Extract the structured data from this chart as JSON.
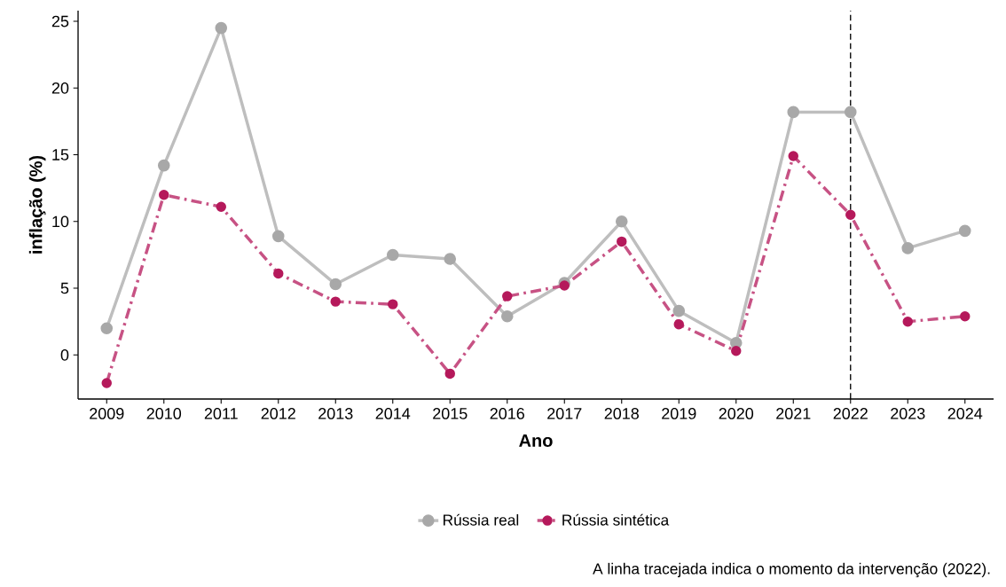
{
  "chart_data": {
    "type": "line",
    "xlabel": "Ano",
    "ylabel": "inflação (%)",
    "x": [
      2009,
      2010,
      2011,
      2012,
      2013,
      2014,
      2015,
      2016,
      2017,
      2018,
      2019,
      2020,
      2021,
      2022,
      2023,
      2024
    ],
    "series": [
      {
        "name": "Rússia real",
        "color": "#a8a8a8",
        "line_style": "solid",
        "values": [
          2.0,
          14.2,
          24.5,
          8.9,
          5.3,
          7.5,
          7.2,
          2.9,
          5.4,
          10.0,
          3.3,
          0.9,
          18.2,
          18.2,
          8.0,
          9.3
        ]
      },
      {
        "name": "Rússia sintética",
        "color": "#b5195b",
        "line_style": "dashed",
        "values": [
          -2.1,
          12.0,
          11.1,
          6.1,
          4.0,
          3.8,
          -1.4,
          4.4,
          5.2,
          8.5,
          2.3,
          0.3,
          14.9,
          10.5,
          2.5,
          2.9
        ]
      }
    ],
    "xlim": [
      2008.5,
      2024.5
    ],
    "xticks": [
      2009,
      2010,
      2011,
      2012,
      2013,
      2014,
      2015,
      2016,
      2017,
      2018,
      2019,
      2020,
      2021,
      2022,
      2023,
      2024
    ],
    "ylim": [
      -3.3,
      25.8
    ],
    "yticks": [
      0,
      5,
      10,
      15,
      20,
      25
    ],
    "marker": "circle",
    "grid": false,
    "legend": "bottom",
    "ref_lines": [
      {
        "axis": "x",
        "value": 2022,
        "color": "#000000",
        "line_style": "dashed"
      }
    ],
    "annotations": [
      "A linha tracejada indica o momento da intervenção (2022)."
    ]
  }
}
